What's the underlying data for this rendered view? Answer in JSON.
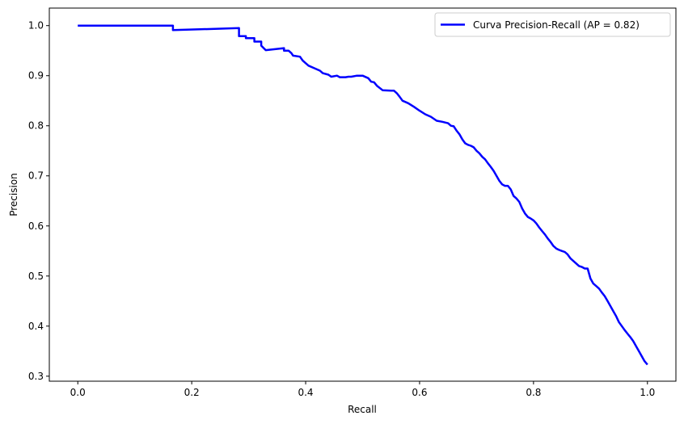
{
  "chart_data": {
    "type": "line",
    "title": "",
    "xlabel": "Recall",
    "ylabel": "Precision",
    "xlim": [
      -0.05,
      1.05
    ],
    "ylim": [
      0.29,
      1.035
    ],
    "xticks": [
      0.0,
      0.2,
      0.4,
      0.6,
      0.8,
      1.0
    ],
    "xtick_labels": [
      "0.0",
      "0.2",
      "0.4",
      "0.6",
      "0.8",
      "1.0"
    ],
    "yticks": [
      0.3,
      0.4,
      0.5,
      0.6,
      0.7,
      0.8,
      0.9,
      1.0
    ],
    "ytick_labels": [
      "0.3",
      "0.4",
      "0.5",
      "0.6",
      "0.7",
      "0.8",
      "0.9",
      "1.0"
    ],
    "grid": false,
    "legend": {
      "position": "top-right"
    },
    "series": [
      {
        "name": "Curva Precision-Recall (AP = 0.82)",
        "color": "#0000ff",
        "x": [
          0.0,
          0.167,
          0.167,
          0.283,
          0.283,
          0.295,
          0.295,
          0.31,
          0.31,
          0.322,
          0.322,
          0.33,
          0.362,
          0.362,
          0.37,
          0.375,
          0.378,
          0.39,
          0.395,
          0.4,
          0.405,
          0.415,
          0.425,
          0.43,
          0.44,
          0.445,
          0.455,
          0.46,
          0.47,
          0.475,
          0.48,
          0.49,
          0.5,
          0.51,
          0.515,
          0.52,
          0.525,
          0.535,
          0.55,
          0.555,
          0.56,
          0.565,
          0.57,
          0.58,
          0.59,
          0.6,
          0.61,
          0.62,
          0.63,
          0.64,
          0.65,
          0.655,
          0.66,
          0.665,
          0.67,
          0.675,
          0.68,
          0.685,
          0.69,
          0.695,
          0.7,
          0.705,
          0.71,
          0.715,
          0.72,
          0.725,
          0.73,
          0.735,
          0.74,
          0.745,
          0.75,
          0.755,
          0.76,
          0.765,
          0.77,
          0.775,
          0.78,
          0.785,
          0.79,
          0.795,
          0.8,
          0.805,
          0.81,
          0.815,
          0.82,
          0.825,
          0.83,
          0.835,
          0.84,
          0.845,
          0.85,
          0.855,
          0.86,
          0.865,
          0.87,
          0.875,
          0.88,
          0.885,
          0.89,
          0.895,
          0.9,
          0.905,
          0.91,
          0.915,
          0.92,
          0.925,
          0.93,
          0.935,
          0.94,
          0.945,
          0.95,
          0.955,
          0.96,
          0.965,
          0.97,
          0.975,
          0.98,
          0.985,
          0.99,
          0.995,
          1.0
        ],
        "y": [
          1.0,
          1.0,
          0.991,
          0.995,
          0.979,
          0.979,
          0.975,
          0.975,
          0.968,
          0.968,
          0.96,
          0.951,
          0.955,
          0.95,
          0.95,
          0.945,
          0.94,
          0.938,
          0.93,
          0.925,
          0.92,
          0.915,
          0.91,
          0.905,
          0.902,
          0.898,
          0.9,
          0.897,
          0.897,
          0.898,
          0.898,
          0.9,
          0.9,
          0.895,
          0.888,
          0.887,
          0.88,
          0.871,
          0.87,
          0.87,
          0.865,
          0.858,
          0.85,
          0.845,
          0.838,
          0.83,
          0.823,
          0.818,
          0.81,
          0.808,
          0.805,
          0.8,
          0.799,
          0.79,
          0.783,
          0.773,
          0.765,
          0.762,
          0.76,
          0.757,
          0.75,
          0.745,
          0.738,
          0.733,
          0.725,
          0.718,
          0.71,
          0.7,
          0.69,
          0.683,
          0.68,
          0.68,
          0.673,
          0.66,
          0.655,
          0.648,
          0.635,
          0.625,
          0.618,
          0.615,
          0.611,
          0.605,
          0.597,
          0.59,
          0.583,
          0.575,
          0.568,
          0.56,
          0.555,
          0.552,
          0.55,
          0.548,
          0.543,
          0.535,
          0.53,
          0.525,
          0.52,
          0.518,
          0.515,
          0.515,
          0.495,
          0.485,
          0.48,
          0.475,
          0.467,
          0.46,
          0.45,
          0.44,
          0.43,
          0.42,
          0.408,
          0.4,
          0.392,
          0.385,
          0.378,
          0.37,
          0.36,
          0.35,
          0.34,
          0.33,
          0.323
        ]
      }
    ]
  }
}
